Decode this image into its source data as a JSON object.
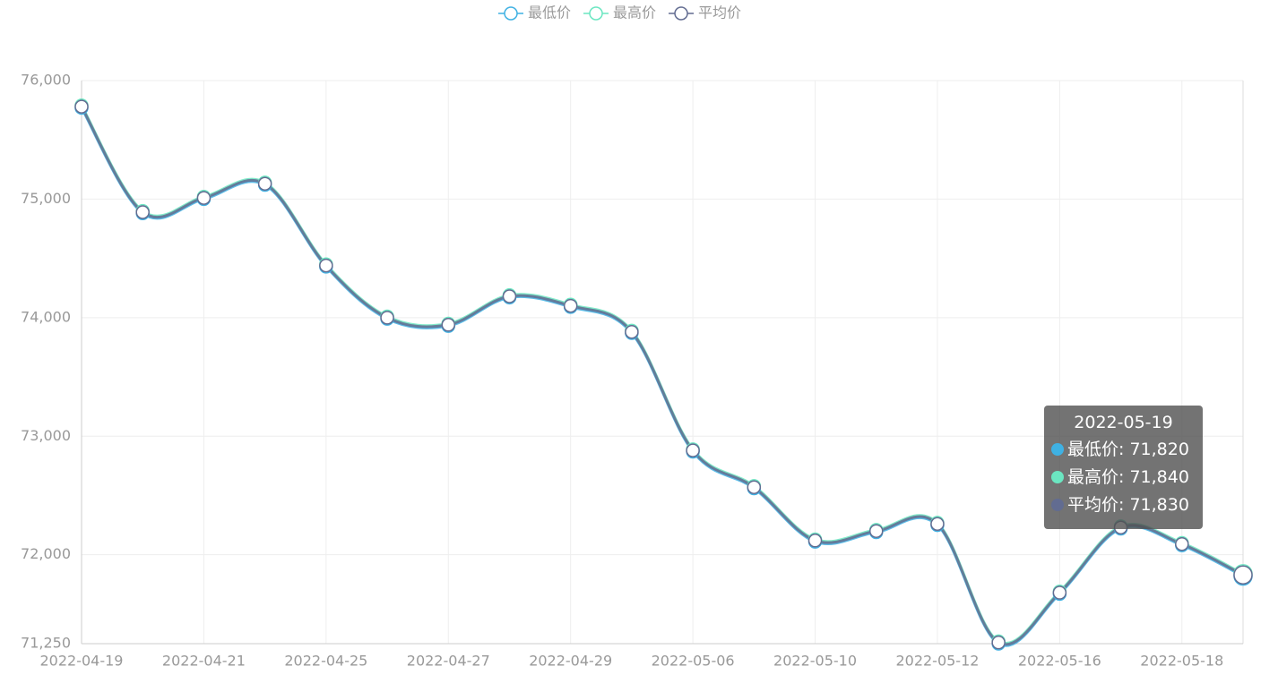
{
  "chart_data": {
    "type": "line",
    "smooth": true,
    "grid": true,
    "categories": [
      "2022-04-19",
      null,
      "2022-04-21",
      null,
      "2022-04-25",
      null,
      "2022-04-27",
      null,
      "2022-04-29",
      null,
      "2022-05-06",
      null,
      "2022-05-10",
      null,
      "2022-05-12",
      null,
      "2022-05-16",
      null,
      "2022-05-18",
      "2022-05-19"
    ],
    "series": [
      {
        "name": "最低价",
        "color": "#3fb1e3",
        "values": [
          75770,
          74880,
          75000,
          75120,
          74430,
          73990,
          73930,
          74170,
          74090,
          73870,
          72870,
          72560,
          72110,
          72190,
          72250,
          71250,
          71670,
          72220,
          72080,
          71820
        ],
        "value_labels": [
          null,
          null,
          null,
          null,
          null,
          null,
          null,
          null,
          null,
          null,
          null,
          null,
          null,
          null,
          null,
          null,
          null,
          null,
          null,
          "71,820"
        ]
      },
      {
        "name": "最高价",
        "color": "#6be6c1",
        "values": [
          75790,
          74900,
          75020,
          75140,
          74450,
          74010,
          73950,
          74190,
          74110,
          73890,
          72890,
          72580,
          72130,
          72210,
          72270,
          71270,
          71690,
          72240,
          72100,
          71840
        ],
        "value_labels": [
          null,
          null,
          null,
          null,
          null,
          null,
          null,
          null,
          null,
          null,
          null,
          null,
          null,
          null,
          null,
          null,
          null,
          null,
          null,
          "71,840"
        ]
      },
      {
        "name": "平均价",
        "color": "#626c91",
        "values": [
          75780,
          74890,
          75010,
          75130,
          74440,
          74000,
          73940,
          74180,
          74100,
          73880,
          72880,
          72570,
          72120,
          72200,
          72260,
          71260,
          71680,
          72230,
          72090,
          71830
        ],
        "value_labels": [
          null,
          null,
          null,
          null,
          null,
          null,
          null,
          null,
          null,
          null,
          null,
          null,
          null,
          null,
          null,
          null,
          null,
          null,
          null,
          "71,830"
        ]
      }
    ],
    "ylim": [
      71250,
      76000
    ],
    "yticks": [
      {
        "value": 71250,
        "label": "71,250"
      },
      {
        "value": 72000,
        "label": "72,000"
      },
      {
        "value": 73000,
        "label": "73,000"
      },
      {
        "value": 74000,
        "label": "74,000"
      },
      {
        "value": 75000,
        "label": "75,000"
      },
      {
        "value": 76000,
        "label": "76,000"
      }
    ]
  }
}
